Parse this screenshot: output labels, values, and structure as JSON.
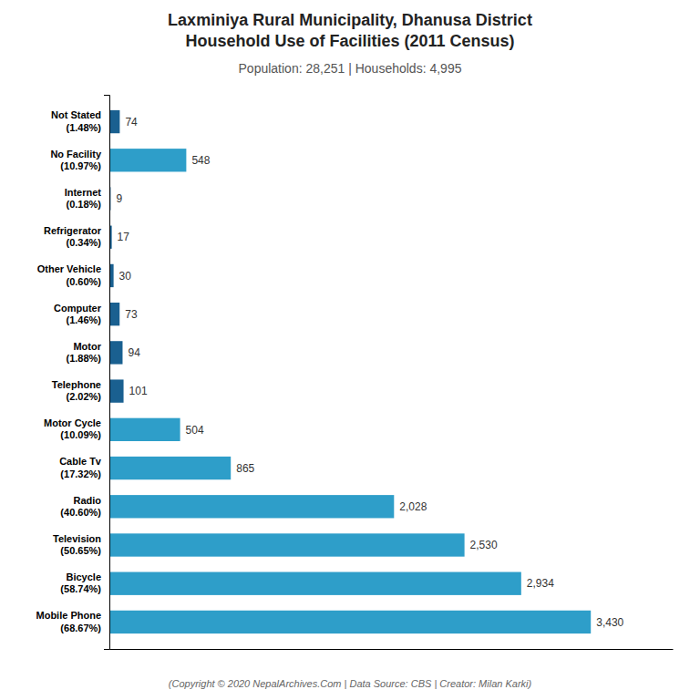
{
  "chart_data": {
    "type": "bar",
    "orientation": "horizontal",
    "title": "Laxminiya Rural Municipality, Dhanusa District\nHousehold Use of Facilities (2011 Census)",
    "subtitle": "Population: 28,251 | Households: 4,995",
    "annotations": [
      "(Copyright © 2020 NepalArchives.Com | Data Source: CBS | Creator: Milan Karki)"
    ],
    "categories": [
      "Not Stated\n(1.48%)",
      "No Facility\n(10.97%)",
      "Internet\n(0.18%)",
      "Refrigerator\n(0.34%)",
      "Other Vehicle\n(0.60%)",
      "Computer\n(1.46%)",
      "Motor\n(1.88%)",
      "Telephone\n(2.02%)",
      "Motor Cycle\n(10.09%)",
      "Cable Tv\n(17.32%)",
      "Radio\n(40.60%)",
      "Television\n(50.65%)",
      "Bicycle\n(58.74%)",
      "Mobile Phone\n(68.67%)"
    ],
    "values": [
      74,
      548,
      9,
      17,
      30,
      73,
      94,
      101,
      504,
      865,
      2028,
      2530,
      2934,
      3430
    ],
    "value_labels": [
      "74",
      "548",
      "9",
      "17",
      "30",
      "73",
      "94",
      "101",
      "504",
      "865",
      "2,028",
      "2,530",
      "2,934",
      "3,430"
    ],
    "colors": [
      "#1a6090",
      "#2e9ec9",
      "#1a6090",
      "#1a6090",
      "#1a6090",
      "#1a6090",
      "#1a6090",
      "#1a6090",
      "#2e9ec9",
      "#2e9ec9",
      "#2e9ec9",
      "#2e9ec9",
      "#2e9ec9",
      "#2e9ec9"
    ],
    "xlim": [
      0,
      4013.1
    ],
    "data_labels": true,
    "tick_labels": "y",
    "grid": false
  }
}
